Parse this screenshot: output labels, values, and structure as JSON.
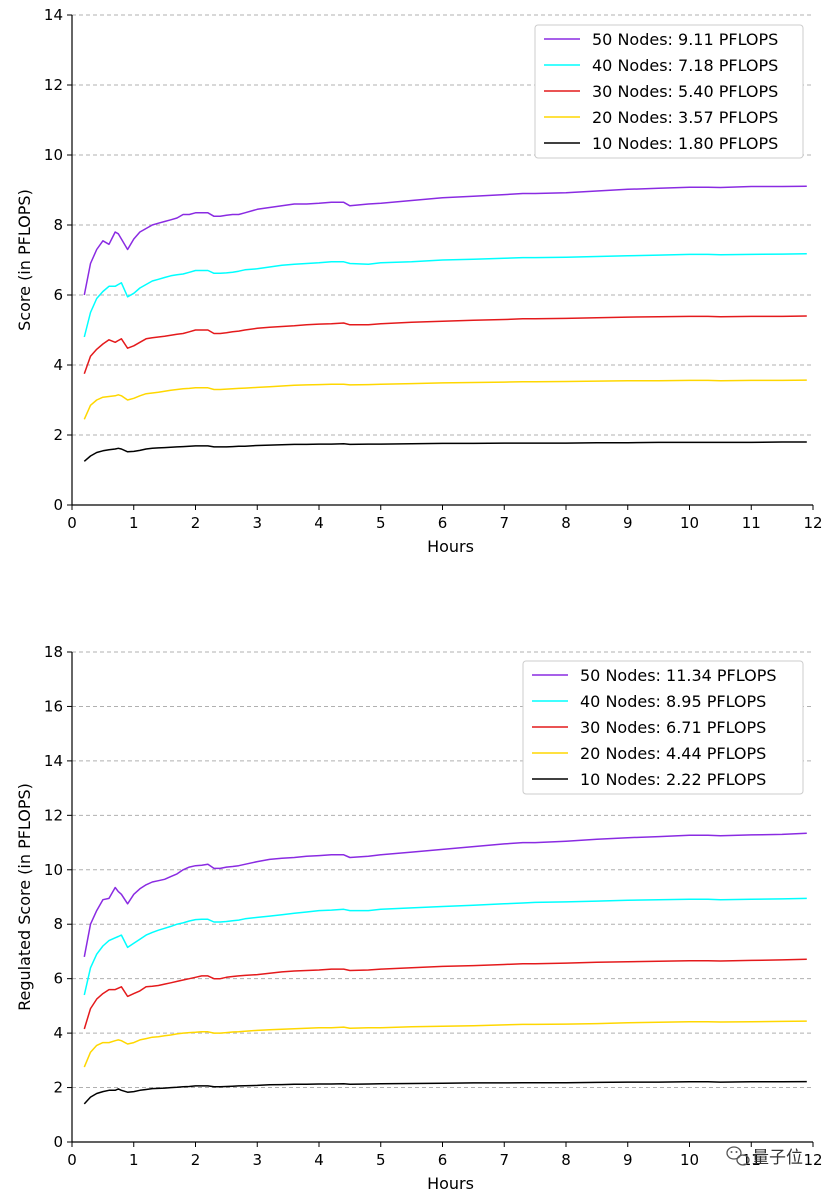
{
  "watermark": {
    "text": "量子位",
    "icon": "wechat-icon"
  },
  "chart_data": [
    {
      "type": "line",
      "title": "",
      "xlabel": "Hours",
      "ylabel": "Score (in PFLOPS)",
      "xlim": [
        0,
        12
      ],
      "ylim": [
        0,
        14
      ],
      "xticks": [
        0,
        1,
        2,
        3,
        4,
        5,
        6,
        7,
        8,
        9,
        10,
        11,
        12
      ],
      "yticks": [
        0,
        2,
        4,
        6,
        8,
        10,
        12,
        14
      ],
      "grid": "horizontal-dashed",
      "legend_position": "top-right",
      "x": [
        0.2,
        0.3,
        0.4,
        0.5,
        0.6,
        0.7,
        0.75,
        0.8,
        0.9,
        1.0,
        1.1,
        1.2,
        1.3,
        1.4,
        1.5,
        1.6,
        1.7,
        1.8,
        1.9,
        2.0,
        2.1,
        2.2,
        2.3,
        2.4,
        2.5,
        2.6,
        2.7,
        2.8,
        3.0,
        3.2,
        3.4,
        3.6,
        3.8,
        4.0,
        4.2,
        4.4,
        4.5,
        4.8,
        5.0,
        5.5,
        6.0,
        6.5,
        7.0,
        7.3,
        7.5,
        8.0,
        8.5,
        9.0,
        9.5,
        10.0,
        10.3,
        10.5,
        11.0,
        11.5,
        11.9
      ],
      "series": [
        {
          "name": "50 Nodes: 9.11 PFLOPS",
          "color": "#8a2be2",
          "values": [
            6.0,
            6.9,
            7.3,
            7.55,
            7.45,
            7.8,
            7.75,
            7.6,
            7.3,
            7.6,
            7.8,
            7.9,
            8.0,
            8.05,
            8.1,
            8.15,
            8.2,
            8.3,
            8.3,
            8.35,
            8.35,
            8.35,
            8.25,
            8.25,
            8.28,
            8.3,
            8.3,
            8.35,
            8.45,
            8.5,
            8.55,
            8.6,
            8.6,
            8.62,
            8.65,
            8.65,
            8.55,
            8.6,
            8.62,
            8.7,
            8.78,
            8.82,
            8.87,
            8.9,
            8.9,
            8.92,
            8.97,
            9.02,
            9.05,
            9.08,
            9.08,
            9.07,
            9.1,
            9.1,
            9.11
          ]
        },
        {
          "name": "40 Nodes: 7.18 PFLOPS",
          "color": "#00ffff",
          "values": [
            4.8,
            5.5,
            5.9,
            6.1,
            6.25,
            6.25,
            6.3,
            6.35,
            5.95,
            6.05,
            6.2,
            6.3,
            6.4,
            6.45,
            6.5,
            6.55,
            6.58,
            6.6,
            6.65,
            6.7,
            6.7,
            6.7,
            6.62,
            6.62,
            6.63,
            6.65,
            6.68,
            6.72,
            6.75,
            6.8,
            6.85,
            6.88,
            6.9,
            6.92,
            6.95,
            6.95,
            6.9,
            6.88,
            6.92,
            6.95,
            7.0,
            7.02,
            7.05,
            7.07,
            7.07,
            7.08,
            7.1,
            7.12,
            7.14,
            7.16,
            7.16,
            7.15,
            7.16,
            7.17,
            7.18
          ]
        },
        {
          "name": "30 Nodes: 5.40 PFLOPS",
          "color": "#e41a1c",
          "values": [
            3.75,
            4.25,
            4.45,
            4.6,
            4.72,
            4.65,
            4.7,
            4.75,
            4.48,
            4.55,
            4.65,
            4.75,
            4.78,
            4.8,
            4.82,
            4.85,
            4.88,
            4.9,
            4.95,
            5.0,
            5.0,
            5.0,
            4.9,
            4.9,
            4.92,
            4.95,
            4.97,
            5.0,
            5.05,
            5.08,
            5.1,
            5.12,
            5.15,
            5.17,
            5.18,
            5.2,
            5.15,
            5.15,
            5.18,
            5.22,
            5.25,
            5.28,
            5.3,
            5.32,
            5.32,
            5.33,
            5.35,
            5.37,
            5.38,
            5.39,
            5.39,
            5.38,
            5.39,
            5.39,
            5.4
          ]
        },
        {
          "name": "20 Nodes: 3.57 PFLOPS",
          "color": "#ffd700",
          "values": [
            2.45,
            2.85,
            3.0,
            3.08,
            3.1,
            3.12,
            3.15,
            3.12,
            3.0,
            3.05,
            3.12,
            3.18,
            3.2,
            3.22,
            3.25,
            3.28,
            3.3,
            3.32,
            3.33,
            3.35,
            3.35,
            3.35,
            3.3,
            3.3,
            3.31,
            3.32,
            3.33,
            3.34,
            3.36,
            3.38,
            3.4,
            3.42,
            3.43,
            3.44,
            3.45,
            3.45,
            3.43,
            3.44,
            3.45,
            3.47,
            3.49,
            3.5,
            3.51,
            3.52,
            3.52,
            3.53,
            3.54,
            3.55,
            3.55,
            3.56,
            3.56,
            3.55,
            3.56,
            3.56,
            3.57
          ]
        },
        {
          "name": "10 Nodes: 1.80 PFLOPS",
          "color": "#000000",
          "values": [
            1.25,
            1.4,
            1.5,
            1.55,
            1.58,
            1.6,
            1.62,
            1.6,
            1.52,
            1.53,
            1.56,
            1.6,
            1.62,
            1.63,
            1.64,
            1.65,
            1.66,
            1.67,
            1.68,
            1.69,
            1.69,
            1.69,
            1.66,
            1.66,
            1.66,
            1.67,
            1.68,
            1.68,
            1.7,
            1.71,
            1.72,
            1.73,
            1.73,
            1.74,
            1.74,
            1.75,
            1.73,
            1.74,
            1.74,
            1.75,
            1.76,
            1.76,
            1.77,
            1.77,
            1.77,
            1.77,
            1.78,
            1.78,
            1.79,
            1.79,
            1.79,
            1.79,
            1.79,
            1.8,
            1.8
          ]
        }
      ]
    },
    {
      "type": "line",
      "title": "",
      "xlabel": "Hours",
      "ylabel": "Regulated Score (in PFLOPS)",
      "xlim": [
        0,
        12
      ],
      "ylim": [
        0,
        18
      ],
      "xticks": [
        0,
        1,
        2,
        3,
        4,
        5,
        6,
        7,
        8,
        9,
        10,
        11,
        12
      ],
      "yticks": [
        0,
        2,
        4,
        6,
        8,
        10,
        12,
        14,
        16,
        18
      ],
      "grid": "horizontal-dashed",
      "legend_position": "top-right",
      "x": [
        0.2,
        0.3,
        0.4,
        0.5,
        0.6,
        0.7,
        0.75,
        0.8,
        0.9,
        1.0,
        1.1,
        1.2,
        1.3,
        1.4,
        1.5,
        1.6,
        1.7,
        1.8,
        1.9,
        2.0,
        2.1,
        2.2,
        2.3,
        2.4,
        2.5,
        2.6,
        2.7,
        2.8,
        3.0,
        3.2,
        3.4,
        3.6,
        3.8,
        4.0,
        4.2,
        4.4,
        4.5,
        4.8,
        5.0,
        5.5,
        6.0,
        6.5,
        7.0,
        7.3,
        7.5,
        8.0,
        8.5,
        9.0,
        9.5,
        10.0,
        10.3,
        10.5,
        11.0,
        11.5,
        11.9
      ],
      "series": [
        {
          "name": "50 Nodes: 11.34 PFLOPS",
          "color": "#8a2be2",
          "values": [
            6.8,
            8.0,
            8.5,
            8.9,
            8.95,
            9.35,
            9.2,
            9.1,
            8.75,
            9.1,
            9.3,
            9.45,
            9.55,
            9.6,
            9.65,
            9.75,
            9.85,
            10.0,
            10.1,
            10.15,
            10.17,
            10.2,
            10.05,
            10.05,
            10.1,
            10.12,
            10.15,
            10.2,
            10.3,
            10.38,
            10.42,
            10.45,
            10.5,
            10.52,
            10.55,
            10.55,
            10.45,
            10.5,
            10.55,
            10.65,
            10.75,
            10.85,
            10.95,
            11.0,
            11.0,
            11.05,
            11.12,
            11.18,
            11.22,
            11.27,
            11.27,
            11.25,
            11.28,
            11.3,
            11.34
          ]
        },
        {
          "name": "40 Nodes: 8.95 PFLOPS",
          "color": "#00ffff",
          "values": [
            5.4,
            6.4,
            6.9,
            7.2,
            7.4,
            7.5,
            7.55,
            7.6,
            7.15,
            7.3,
            7.45,
            7.6,
            7.7,
            7.78,
            7.85,
            7.92,
            8.0,
            8.05,
            8.12,
            8.17,
            8.18,
            8.18,
            8.08,
            8.08,
            8.1,
            8.13,
            8.15,
            8.2,
            8.25,
            8.3,
            8.35,
            8.4,
            8.45,
            8.5,
            8.52,
            8.55,
            8.5,
            8.5,
            8.55,
            8.6,
            8.65,
            8.7,
            8.75,
            8.78,
            8.8,
            8.82,
            8.85,
            8.88,
            8.9,
            8.92,
            8.92,
            8.9,
            8.92,
            8.93,
            8.95
          ]
        },
        {
          "name": "30 Nodes: 6.71 PFLOPS",
          "color": "#e41a1c",
          "values": [
            4.15,
            4.9,
            5.25,
            5.45,
            5.6,
            5.6,
            5.65,
            5.7,
            5.35,
            5.45,
            5.55,
            5.7,
            5.72,
            5.75,
            5.8,
            5.85,
            5.9,
            5.95,
            6.0,
            6.05,
            6.1,
            6.1,
            6.0,
            6.0,
            6.05,
            6.08,
            6.1,
            6.12,
            6.15,
            6.2,
            6.25,
            6.28,
            6.3,
            6.32,
            6.35,
            6.35,
            6.3,
            6.32,
            6.35,
            6.4,
            6.45,
            6.48,
            6.52,
            6.55,
            6.55,
            6.57,
            6.6,
            6.62,
            6.64,
            6.66,
            6.66,
            6.65,
            6.67,
            6.69,
            6.71
          ]
        },
        {
          "name": "20 Nodes: 4.44 PFLOPS",
          "color": "#ffd700",
          "values": [
            2.75,
            3.3,
            3.55,
            3.65,
            3.65,
            3.72,
            3.75,
            3.72,
            3.6,
            3.65,
            3.75,
            3.8,
            3.85,
            3.87,
            3.9,
            3.93,
            3.97,
            4.0,
            4.02,
            4.03,
            4.05,
            4.05,
            4.0,
            4.0,
            4.02,
            4.04,
            4.05,
            4.07,
            4.1,
            4.12,
            4.14,
            4.16,
            4.18,
            4.2,
            4.2,
            4.22,
            4.18,
            4.2,
            4.2,
            4.23,
            4.25,
            4.27,
            4.3,
            4.32,
            4.32,
            4.33,
            4.35,
            4.38,
            4.4,
            4.42,
            4.42,
            4.41,
            4.42,
            4.43,
            4.44
          ]
        },
        {
          "name": "10 Nodes: 2.22 PFLOPS",
          "color": "#000000",
          "values": [
            1.4,
            1.65,
            1.78,
            1.85,
            1.9,
            1.9,
            1.95,
            1.9,
            1.83,
            1.85,
            1.9,
            1.93,
            1.96,
            1.97,
            1.98,
            2.0,
            2.01,
            2.03,
            2.04,
            2.06,
            2.06,
            2.06,
            2.03,
            2.03,
            2.04,
            2.05,
            2.06,
            2.07,
            2.08,
            2.1,
            2.11,
            2.12,
            2.12,
            2.13,
            2.13,
            2.14,
            2.12,
            2.13,
            2.14,
            2.15,
            2.16,
            2.17,
            2.17,
            2.18,
            2.18,
            2.18,
            2.19,
            2.2,
            2.2,
            2.21,
            2.21,
            2.2,
            2.21,
            2.21,
            2.22
          ]
        }
      ]
    }
  ]
}
